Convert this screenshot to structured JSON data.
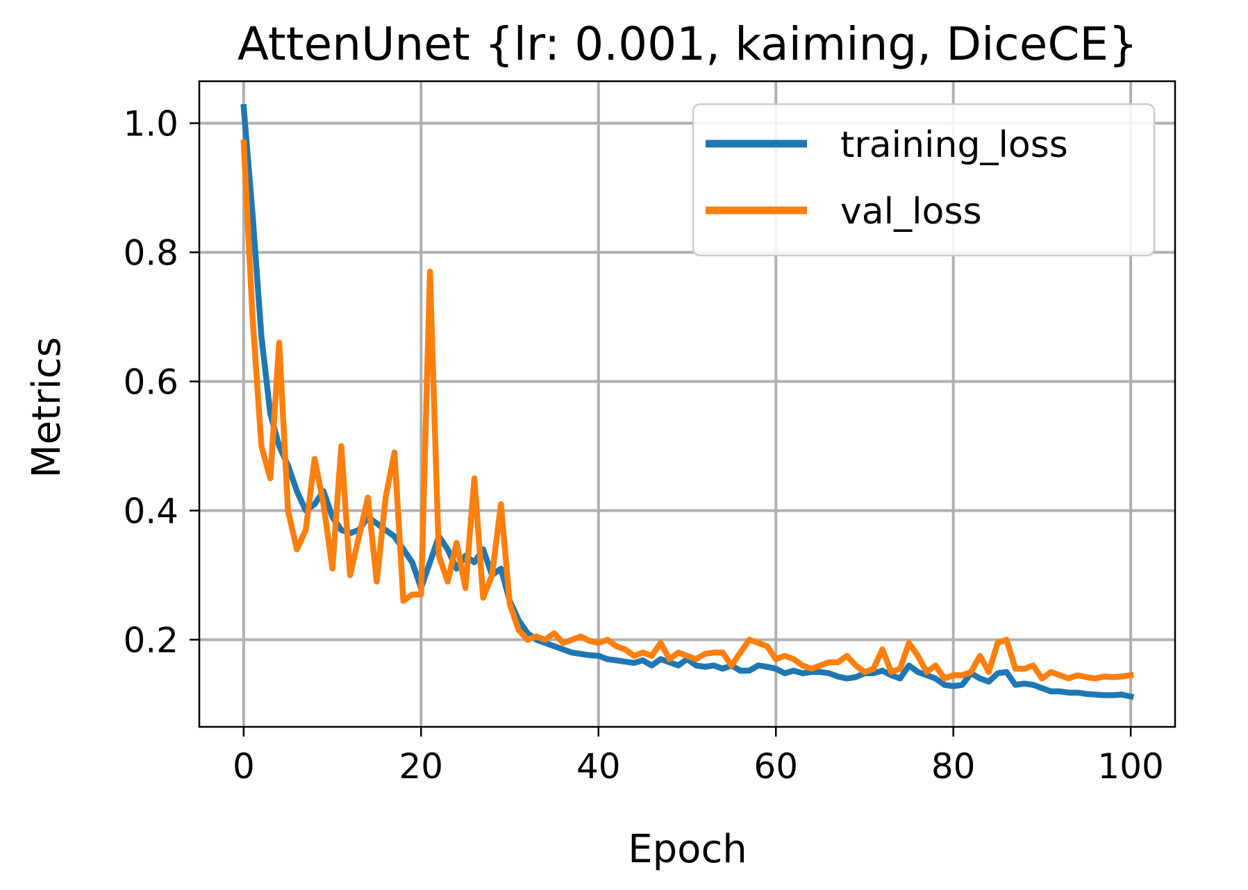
{
  "chart_data": {
    "type": "line",
    "title": "AttenUnet {lr: 0.001, kaiming, DiceCE}",
    "xlabel": "Epoch",
    "ylabel": "Metrics",
    "xlim": [
      -5,
      105
    ],
    "ylim": [
      0.065,
      1.065
    ],
    "xticks": [
      0,
      20,
      40,
      60,
      80,
      100
    ],
    "xtick_labels": [
      "0",
      "20",
      "40",
      "60",
      "80",
      "100"
    ],
    "yticks": [
      0.2,
      0.4,
      0.6,
      0.8,
      1.0
    ],
    "ytick_labels": [
      "0.2",
      "0.4",
      "0.6",
      "0.8",
      "1.0"
    ],
    "grid": true,
    "legend_position": "top-right",
    "x": [
      0,
      1,
      2,
      3,
      4,
      5,
      6,
      7,
      8,
      9,
      10,
      11,
      12,
      13,
      14,
      15,
      16,
      17,
      18,
      19,
      20,
      21,
      22,
      23,
      24,
      25,
      26,
      27,
      28,
      29,
      30,
      31,
      32,
      33,
      34,
      35,
      36,
      37,
      38,
      39,
      40,
      41,
      42,
      43,
      44,
      45,
      46,
      47,
      48,
      49,
      50,
      51,
      52,
      53,
      54,
      55,
      56,
      57,
      58,
      59,
      60,
      61,
      62,
      63,
      64,
      65,
      66,
      67,
      68,
      69,
      70,
      71,
      72,
      73,
      74,
      75,
      76,
      77,
      78,
      79,
      80,
      81,
      82,
      83,
      84,
      85,
      86,
      87,
      88,
      89,
      90,
      91,
      92,
      93,
      94,
      95,
      96,
      97,
      98,
      99,
      100
    ],
    "series": [
      {
        "name": "training_loss",
        "color": "#1f77b4",
        "values": [
          1.025,
          0.86,
          0.67,
          0.55,
          0.5,
          0.47,
          0.43,
          0.4,
          0.41,
          0.43,
          0.39,
          0.37,
          0.365,
          0.37,
          0.39,
          0.38,
          0.37,
          0.36,
          0.34,
          0.32,
          0.28,
          0.32,
          0.36,
          0.34,
          0.31,
          0.33,
          0.32,
          0.34,
          0.3,
          0.31,
          0.26,
          0.23,
          0.21,
          0.2,
          0.195,
          0.19,
          0.185,
          0.18,
          0.178,
          0.176,
          0.175,
          0.17,
          0.168,
          0.166,
          0.164,
          0.168,
          0.16,
          0.17,
          0.165,
          0.16,
          0.17,
          0.16,
          0.158,
          0.16,
          0.155,
          0.16,
          0.152,
          0.152,
          0.16,
          0.158,
          0.155,
          0.148,
          0.152,
          0.148,
          0.15,
          0.15,
          0.148,
          0.143,
          0.14,
          0.142,
          0.148,
          0.148,
          0.152,
          0.145,
          0.14,
          0.16,
          0.15,
          0.145,
          0.14,
          0.13,
          0.128,
          0.13,
          0.148,
          0.14,
          0.135,
          0.148,
          0.15,
          0.13,
          0.132,
          0.13,
          0.125,
          0.12,
          0.12,
          0.118,
          0.118,
          0.116,
          0.115,
          0.114,
          0.114,
          0.115,
          0.112
        ]
      },
      {
        "name": "val_loss",
        "color": "#ff7f0e",
        "values": [
          0.97,
          0.7,
          0.5,
          0.45,
          0.66,
          0.4,
          0.34,
          0.37,
          0.48,
          0.41,
          0.31,
          0.5,
          0.3,
          0.36,
          0.42,
          0.29,
          0.42,
          0.49,
          0.26,
          0.27,
          0.27,
          0.77,
          0.33,
          0.29,
          0.35,
          0.28,
          0.45,
          0.265,
          0.3,
          0.41,
          0.255,
          0.215,
          0.2,
          0.205,
          0.2,
          0.21,
          0.195,
          0.2,
          0.205,
          0.198,
          0.195,
          0.2,
          0.19,
          0.185,
          0.175,
          0.18,
          0.175,
          0.195,
          0.17,
          0.18,
          0.175,
          0.17,
          0.178,
          0.18,
          0.18,
          0.16,
          0.18,
          0.2,
          0.195,
          0.19,
          0.17,
          0.175,
          0.17,
          0.16,
          0.155,
          0.16,
          0.165,
          0.165,
          0.175,
          0.16,
          0.15,
          0.155,
          0.185,
          0.15,
          0.155,
          0.195,
          0.175,
          0.15,
          0.16,
          0.14,
          0.145,
          0.145,
          0.15,
          0.175,
          0.15,
          0.195,
          0.2,
          0.155,
          0.155,
          0.16,
          0.14,
          0.15,
          0.145,
          0.14,
          0.145,
          0.142,
          0.14,
          0.143,
          0.142,
          0.143,
          0.145
        ]
      }
    ]
  }
}
